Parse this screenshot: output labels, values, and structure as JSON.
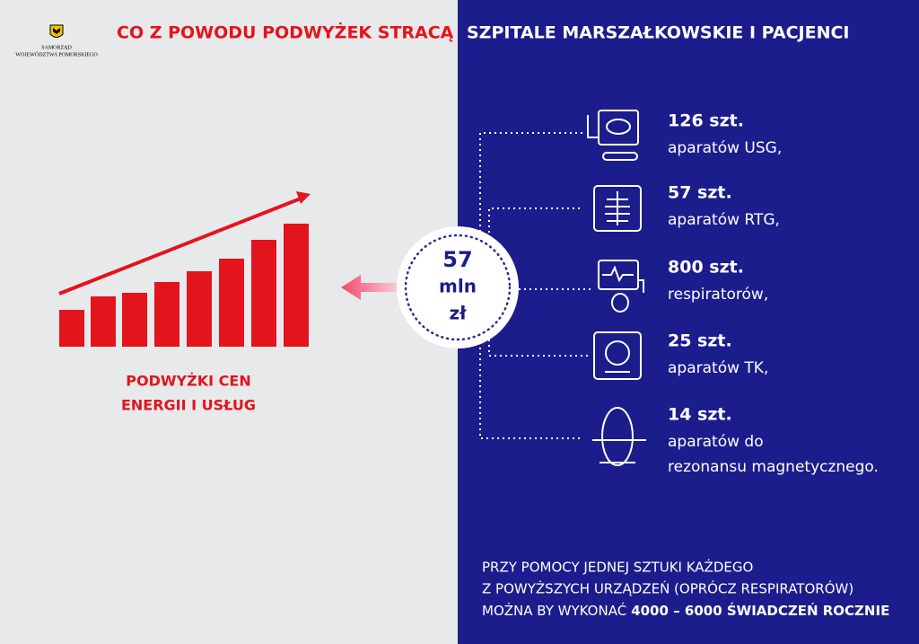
{
  "header": {
    "logo": [
      "SAMORZĄD",
      "WOJEWÓDZTWA POMORSKIEGO"
    ],
    "title_left": "CO Z POWODU PODWYŻEK STRACĄ",
    "title_right": "SZPITALE MARSZAŁKOWSKIE I PACJENCI"
  },
  "left": {
    "caption": [
      "PODWYŻKI CEN",
      "ENERGII I USŁUG"
    ]
  },
  "circle": {
    "lines": [
      "57",
      "mln",
      "zł"
    ]
  },
  "items": [
    {
      "amount": "126 szt.",
      "lines": [
        "aparatów USG,"
      ]
    },
    {
      "amount": "57 szt.",
      "lines": [
        "aparatów RTG,"
      ]
    },
    {
      "amount": "800 szt.",
      "lines": [
        "respiratorów,"
      ]
    },
    {
      "amount": "25 szt.",
      "lines": [
        "aparatów TK,"
      ]
    },
    {
      "amount": "14 szt.",
      "lines": [
        "aparatów do",
        "rezonansu magnetycznego."
      ]
    }
  ],
  "footer": {
    "lines": [
      "PRZY POMOCY JEDNEJ SZTUKI KAŻDEGO",
      "Z POWYŻSZYCH URZĄDZEŃ (OPRÓCZ RESPIRATORÓW)"
    ],
    "last_line": "MOŻNA BY WYKONAĆ",
    "highlight": "4000 – 6000 ŚWIADCZEŃ ROCZNIE"
  }
}
